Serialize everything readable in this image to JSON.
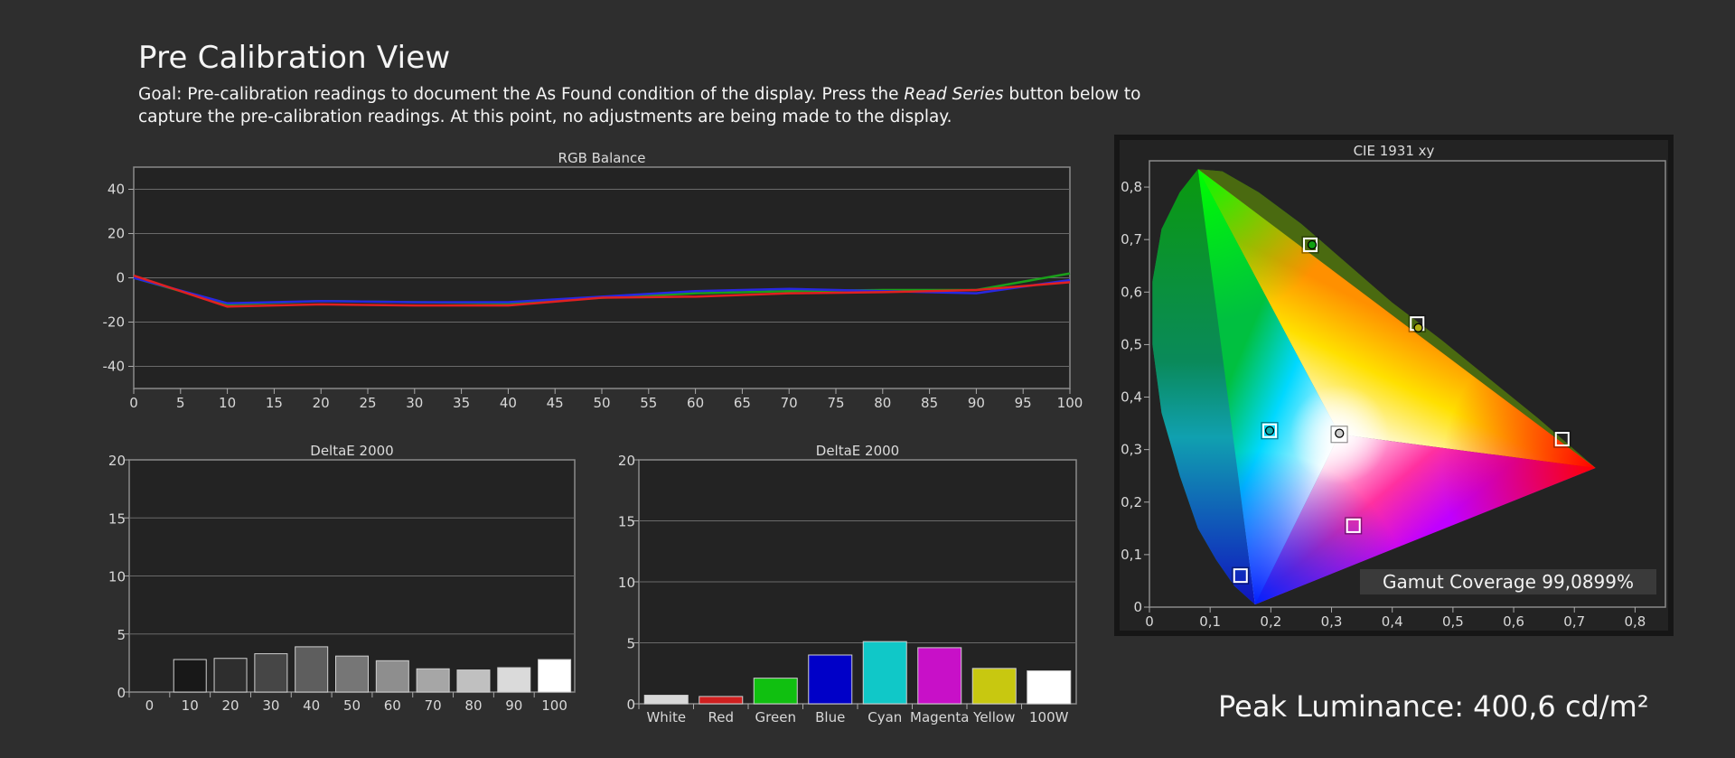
{
  "header": {
    "title": "Pre Calibration View",
    "goal_part1": "Goal: Pre-calibration readings to document the As Found condition of the display. Press the ",
    "goal_emph": "Read Series",
    "goal_part2": " button below to capture the pre-calibration readings. At this point, no adjustments are being made to the display."
  },
  "peak_luminance": "Peak Luminance: 400,6 cd/m²",
  "colors": {
    "background": "#2e2e2e",
    "plot_background": "#232323",
    "red": "#e02020",
    "green": "#1aa01a",
    "blue": "#2828e0"
  },
  "chart_data": [
    {
      "id": "rgb",
      "type": "line",
      "title": "RGB Balance",
      "x": [
        0,
        10,
        20,
        30,
        40,
        50,
        60,
        70,
        80,
        90,
        100
      ],
      "x_ticks": [
        0,
        5,
        10,
        15,
        20,
        25,
        30,
        35,
        40,
        45,
        50,
        55,
        60,
        65,
        70,
        75,
        80,
        85,
        90,
        95,
        100
      ],
      "xlim": [
        0,
        100
      ],
      "ylim": [
        -50,
        50
      ],
      "y_ticks": [
        40,
        20,
        0,
        -20,
        -40
      ],
      "grid": true,
      "series": [
        {
          "color": "#1aa01a",
          "values": [
            0,
            -12,
            -10.5,
            -11,
            -11.5,
            -9,
            -7,
            -6,
            -5.5,
            -5.5,
            2
          ]
        },
        {
          "color": "#2828e0",
          "values": [
            0,
            -11.5,
            -10.5,
            -11,
            -11,
            -8.5,
            -6,
            -5,
            -6,
            -7,
            -1
          ]
        },
        {
          "color": "#e02020",
          "values": [
            1,
            -13,
            -12,
            -12.5,
            -12.5,
            -9,
            -8.5,
            -7,
            -6.5,
            -5.5,
            -2
          ]
        }
      ]
    },
    {
      "id": "de_gray",
      "type": "bar",
      "title": "DeltaE 2000",
      "categories": [
        "0",
        "10",
        "20",
        "30",
        "40",
        "50",
        "60",
        "70",
        "80",
        "90",
        "100"
      ],
      "values": [
        0,
        2.8,
        2.9,
        3.3,
        3.9,
        3.1,
        2.7,
        2.0,
        1.9,
        2.1,
        2.8
      ],
      "colors": [
        "#000000",
        "#181818",
        "#2e2e2e",
        "#464646",
        "#5e5e5e",
        "#767676",
        "#8e8e8e",
        "#a6a6a6",
        "#c0c0c0",
        "#dadada",
        "#ffffff"
      ],
      "ylim": [
        0,
        20
      ],
      "y_ticks": [
        0,
        5,
        10,
        15,
        20
      ],
      "grid": true
    },
    {
      "id": "de_color",
      "type": "bar",
      "title": "DeltaE 2000",
      "categories": [
        "White",
        "Red",
        "Green",
        "Blue",
        "Cyan",
        "Magenta",
        "Yellow",
        "100W"
      ],
      "values": [
        0.7,
        0.6,
        2.1,
        4.0,
        5.1,
        4.6,
        2.9,
        2.7
      ],
      "colors": [
        "#d8d8d8",
        "#d02020",
        "#10c010",
        "#0000c8",
        "#10c8c8",
        "#c810c8",
        "#c8c810",
        "#ffffff"
      ],
      "ylim": [
        0,
        20
      ],
      "y_ticks": [
        0,
        5,
        10,
        15,
        20
      ],
      "grid": true
    },
    {
      "id": "cie",
      "type": "scatter",
      "title": "CIE 1931 xy",
      "xlim": [
        0,
        0.85
      ],
      "ylim": [
        0,
        0.85
      ],
      "x_ticks": [
        "0",
        "0,1",
        "0,2",
        "0,3",
        "0,4",
        "0,5",
        "0,6",
        "0,7",
        "0,8"
      ],
      "y_ticks": [
        "0",
        "0,1",
        "0,2",
        "0,3",
        "0,4",
        "0,5",
        "0,6",
        "0,7",
        "0,8"
      ],
      "gamut_coverage": "Gamut Coverage 99,0899%",
      "targets": [
        {
          "name": "Red",
          "x": 0.68,
          "y": 0.32
        },
        {
          "name": "Green",
          "x": 0.265,
          "y": 0.69
        },
        {
          "name": "Blue",
          "x": 0.15,
          "y": 0.06
        },
        {
          "name": "Cyan",
          "x": 0.198,
          "y": 0.336
        },
        {
          "name": "Magenta",
          "x": 0.336,
          "y": 0.155
        },
        {
          "name": "Yellow",
          "x": 0.441,
          "y": 0.54
        },
        {
          "name": "White",
          "x": 0.3127,
          "y": 0.329
        }
      ],
      "measured": [
        {
          "name": "Green",
          "x": 0.268,
          "y": 0.69,
          "color": "#10a010"
        },
        {
          "name": "Cyan",
          "x": 0.198,
          "y": 0.336,
          "color": "#10b0b0"
        },
        {
          "name": "Yellow",
          "x": 0.443,
          "y": 0.532,
          "color": "#b0b010"
        },
        {
          "name": "White",
          "x": 0.313,
          "y": 0.331,
          "color": "#d0d0d0"
        }
      ]
    }
  ]
}
